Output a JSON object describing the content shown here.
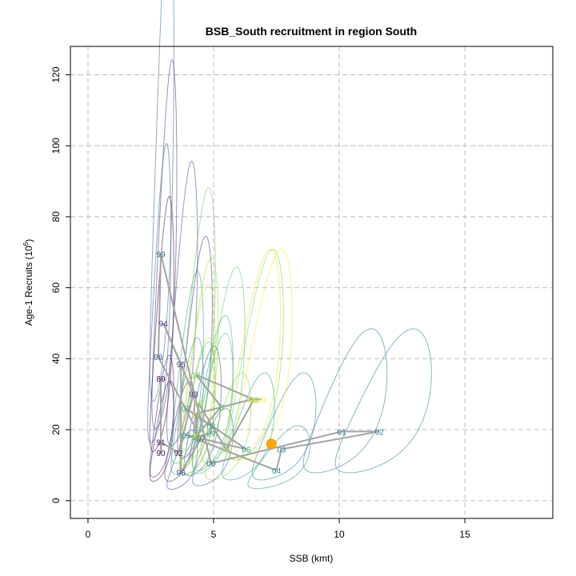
{
  "chart_data": {
    "type": "scatter",
    "title": "BSB_South recruitment in region South",
    "xlabel": "SSB (kmt)",
    "ylabel": "Age-1 Recruits (10",
    "ylabel_exp": "6",
    "ylabel_close": ")",
    "xlim": [
      -0.7,
      18.5
    ],
    "ylim": [
      -5,
      128
    ],
    "x_ticks": [
      0,
      5,
      10,
      15
    ],
    "y_ticks": [
      0,
      20,
      40,
      60,
      80,
      100,
      120
    ],
    "grid": true,
    "grid_color": "#bebebe",
    "line_color": "#a3a3a3",
    "current_marker_color": "#ffa500",
    "points": [
      {
        "label": "89",
        "x": 2.9,
        "y": 34.5
      },
      {
        "label": "90",
        "x": 2.9,
        "y": 13.5
      },
      {
        "label": "91",
        "x": 2.9,
        "y": 16.5
      },
      {
        "label": "92",
        "x": 3.6,
        "y": 13.5
      },
      {
        "label": "93",
        "x": 4.2,
        "y": 30.0
      },
      {
        "label": "94",
        "x": 3.0,
        "y": 50.0
      },
      {
        "label": "95",
        "x": 3.7,
        "y": 38.5
      },
      {
        "label": "96",
        "x": 3.7,
        "y": 8.0
      },
      {
        "label": "97",
        "x": 4.5,
        "y": 17.5
      },
      {
        "label": "98",
        "x": 2.8,
        "y": 40.5
      },
      {
        "label": "99",
        "x": 2.9,
        "y": 69.5
      },
      {
        "label": "00",
        "x": 4.9,
        "y": 10.5
      },
      {
        "label": "01",
        "x": 10.1,
        "y": 19.5
      },
      {
        "label": "02",
        "x": 11.6,
        "y": 19.5
      },
      {
        "label": "03",
        "x": 7.7,
        "y": 14.5
      },
      {
        "label": "04",
        "x": 7.5,
        "y": 8.5
      },
      {
        "label": "05",
        "x": 3.9,
        "y": 18.5
      },
      {
        "label": "06",
        "x": 6.3,
        "y": 14.5
      },
      {
        "label": "07",
        "x": 3.9,
        "y": 26.0
      },
      {
        "label": "08",
        "x": 4.9,
        "y": 21.0
      },
      {
        "label": "09",
        "x": 4.9,
        "y": 19.0
      },
      {
        "label": "10",
        "x": 4.3,
        "y": 18.0
      },
      {
        "label": "11",
        "x": 5.3,
        "y": 26.5
      },
      {
        "label": "12",
        "x": 4.3,
        "y": 35.5
      },
      {
        "label": "13",
        "x": 6.6,
        "y": 28.5
      },
      {
        "label": "14",
        "x": 5.5,
        "y": 14.5
      },
      {
        "label": "15",
        "x": 4.4,
        "y": 27.5
      },
      {
        "label": "16",
        "x": 4.3,
        "y": 18.5
      },
      {
        "label": "17",
        "x": 4.3,
        "y": 24.5
      },
      {
        "label": "18",
        "x": 6.5,
        "y": 28.5
      },
      {
        "label": "19",
        "x": 6.9,
        "y": 28.5
      }
    ],
    "current_point": {
      "x": 7.3,
      "y": 16.0
    }
  }
}
